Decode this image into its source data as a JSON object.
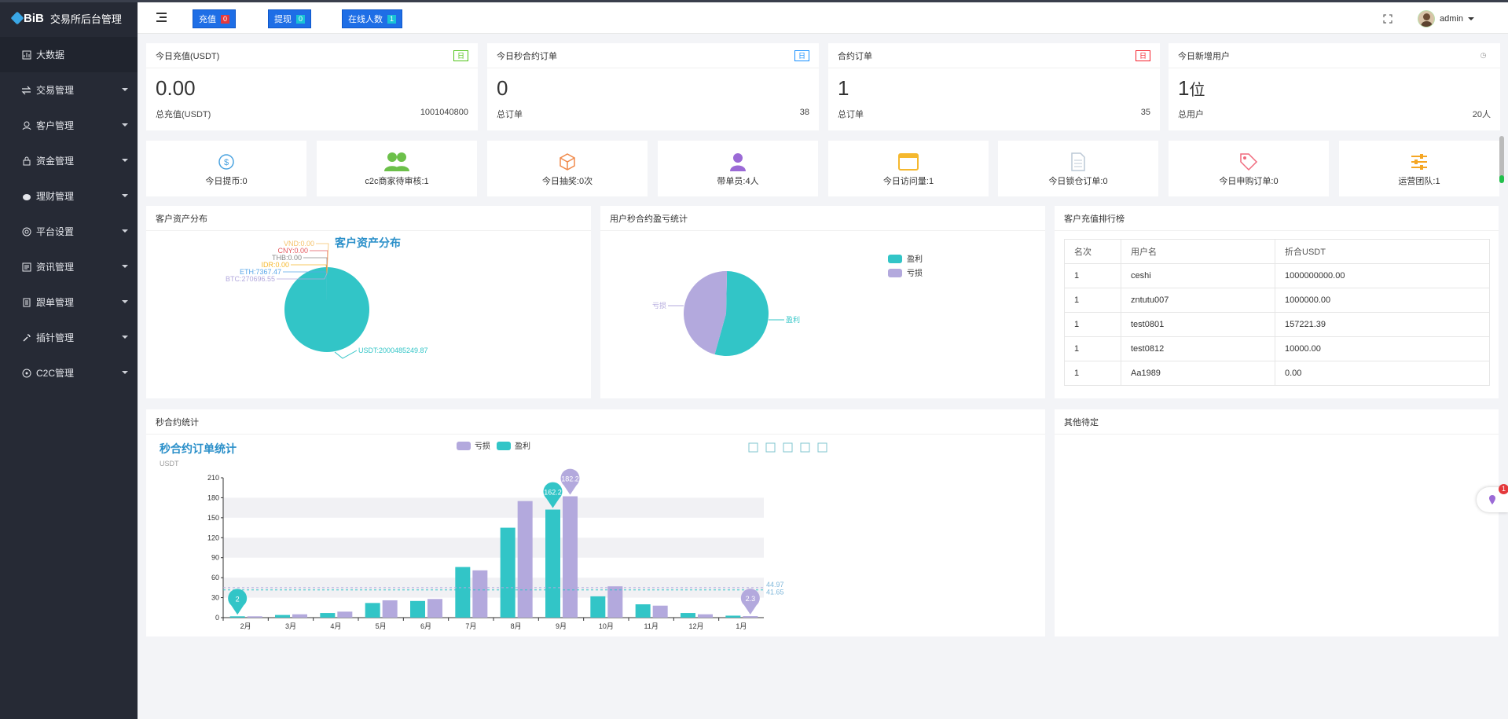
{
  "app": {
    "logo_text": "BiB",
    "title": "交易所后台管理"
  },
  "sidebar": {
    "items": [
      {
        "label": "大数据",
        "icon": "chart-icon",
        "expandable": false
      },
      {
        "label": "交易管理",
        "icon": "exchange-icon",
        "expandable": true
      },
      {
        "label": "客户管理",
        "icon": "user-icon",
        "expandable": true
      },
      {
        "label": "资金管理",
        "icon": "lock-icon",
        "expandable": true
      },
      {
        "label": "理财管理",
        "icon": "piggy-bank-icon",
        "expandable": true
      },
      {
        "label": "平台设置",
        "icon": "settings-icon",
        "expandable": true
      },
      {
        "label": "资讯管理",
        "icon": "news-icon",
        "expandable": true
      },
      {
        "label": "跟单管理",
        "icon": "document-icon",
        "expandable": true
      },
      {
        "label": "插针管理",
        "icon": "wrench-icon",
        "expandable": true
      },
      {
        "label": "C2C管理",
        "icon": "target-icon",
        "expandable": true
      }
    ]
  },
  "header": {
    "buttons": [
      {
        "label": "充值",
        "badge": "0",
        "badge_color": "#e4393c"
      },
      {
        "label": "提现",
        "badge": "0",
        "badge_color": "#19c3d6"
      },
      {
        "label": "在线人数",
        "badge": "1",
        "badge_color": "#19c3d6"
      }
    ],
    "user": "admin"
  },
  "stats": [
    {
      "title": "今日充值(USDT)",
      "tag": "日",
      "tag_color": "#52c41a",
      "value": "0.00",
      "unit": "",
      "footer_label": "总充值(USDT)",
      "footer_value": "1001040800"
    },
    {
      "title": "今日秒合约订单",
      "tag": "日",
      "tag_color": "#1890ff",
      "value": "0",
      "unit": "",
      "footer_label": "总订单",
      "footer_value": "38"
    },
    {
      "title": "合约订单",
      "tag": "日",
      "tag_color": "#f5222d",
      "value": "1",
      "unit": "",
      "footer_label": "总订单",
      "footer_value": "35"
    },
    {
      "title": "今日新增用户",
      "tag": "◷",
      "tag_color": "#999999",
      "value": "1",
      "unit": "位",
      "footer_label": "总用户",
      "footer_value": "20人"
    }
  ],
  "tiles": [
    {
      "label": "今日提币:0",
      "icon": "dollar-coin-icon",
      "color": "#4aa3e0"
    },
    {
      "label": "c2c商家待审核:1",
      "icon": "users-icon",
      "color": "#6cc04a"
    },
    {
      "label": "今日抽奖:0次",
      "icon": "box-icon",
      "color": "#f08a4b"
    },
    {
      "label": "带单员:4人",
      "icon": "person-icon",
      "color": "#9b6ad6"
    },
    {
      "label": "今日访问量:1",
      "icon": "window-icon",
      "color": "#f5b82e"
    },
    {
      "label": "今日锁仓订单:0",
      "icon": "file-icon",
      "color": "#bcc8d6"
    },
    {
      "label": "今日申购订单:0",
      "icon": "tag-icon",
      "color": "#f06a7d"
    },
    {
      "label": "运营团队:1",
      "icon": "sliders-icon",
      "color": "#f5a623"
    }
  ],
  "panels": {
    "asset_title": "客户资产分布",
    "pl_title": "用户秒合约盈亏统计",
    "rank_title": "客户充值排行榜",
    "second_title": "秒合约统计",
    "other_title": "其他待定"
  },
  "asset_chart": {
    "type": "pie",
    "title": "客户资产分布",
    "slices": [
      {
        "label": "USDT:2000485249.87",
        "value": 2000485249.87,
        "color": "#32c5c7"
      },
      {
        "label": "BTC:270696.55",
        "value": 270696.55,
        "color": "#b3a9dd"
      },
      {
        "label": "ETH:7367.47",
        "value": 7367.47,
        "color": "#5aa7e8"
      },
      {
        "label": "IDR:0.00",
        "value": 0,
        "color": "#f5b82e"
      },
      {
        "label": "THB:0.00",
        "value": 0,
        "color": "#888888"
      },
      {
        "label": "CNY:0.00",
        "value": 0,
        "color": "#e4565c"
      },
      {
        "label": "VND:0.00",
        "value": 0,
        "color": "#f5c26b"
      }
    ]
  },
  "pl_chart": {
    "type": "pie",
    "legend": [
      "盈利",
      "亏损"
    ],
    "values": [
      {
        "name": "盈利",
        "value": 54,
        "color": "#32c5c7"
      },
      {
        "name": "亏损",
        "value": 46,
        "color": "#b3a9dd"
      }
    ]
  },
  "rank_table": {
    "headers": [
      "名次",
      "用户名",
      "折合USDT"
    ],
    "rows": [
      [
        "1",
        "ceshi",
        "1000000000.00"
      ],
      [
        "1",
        "zntutu007",
        "1000000.00"
      ],
      [
        "1",
        "test0801",
        "157221.39"
      ],
      [
        "1",
        "test0812",
        "10000.00"
      ],
      [
        "1",
        "Aa1989",
        "0.00"
      ]
    ]
  },
  "chart_data": {
    "type": "bar",
    "title": "秒合约订单统计",
    "subtitle": "USDT",
    "categories": [
      "2月",
      "3月",
      "4月",
      "5月",
      "6月",
      "7月",
      "8月",
      "9月",
      "10月",
      "11月",
      "12月",
      "1月"
    ],
    "series": [
      {
        "name": "盈利",
        "color": "#32c5c7",
        "values": [
          2,
          4,
          7,
          22,
          25,
          76,
          135,
          162.2,
          32,
          20,
          7,
          3
        ]
      },
      {
        "name": "亏损",
        "color": "#b3a9dd",
        "values": [
          2,
          5,
          9,
          26,
          28,
          71,
          175,
          182.2,
          47,
          18,
          5,
          2.3
        ]
      }
    ],
    "ylim": [
      0,
      210
    ],
    "yticks": [
      0,
      30,
      60,
      90,
      120,
      150,
      180,
      210
    ],
    "markers": [
      {
        "series": 0,
        "index": 0,
        "label": "2"
      },
      {
        "series": 0,
        "index": 7,
        "label": "162.2"
      },
      {
        "series": 1,
        "index": 7,
        "label": "182.2"
      },
      {
        "series": 1,
        "index": 11,
        "label": "2.3"
      }
    ],
    "avg_lines": [
      {
        "label": "44.97",
        "value": 44.97
      },
      {
        "label": "41.65",
        "value": 41.65
      }
    ],
    "legend": [
      "亏损",
      "盈利"
    ],
    "grid": "bands"
  }
}
